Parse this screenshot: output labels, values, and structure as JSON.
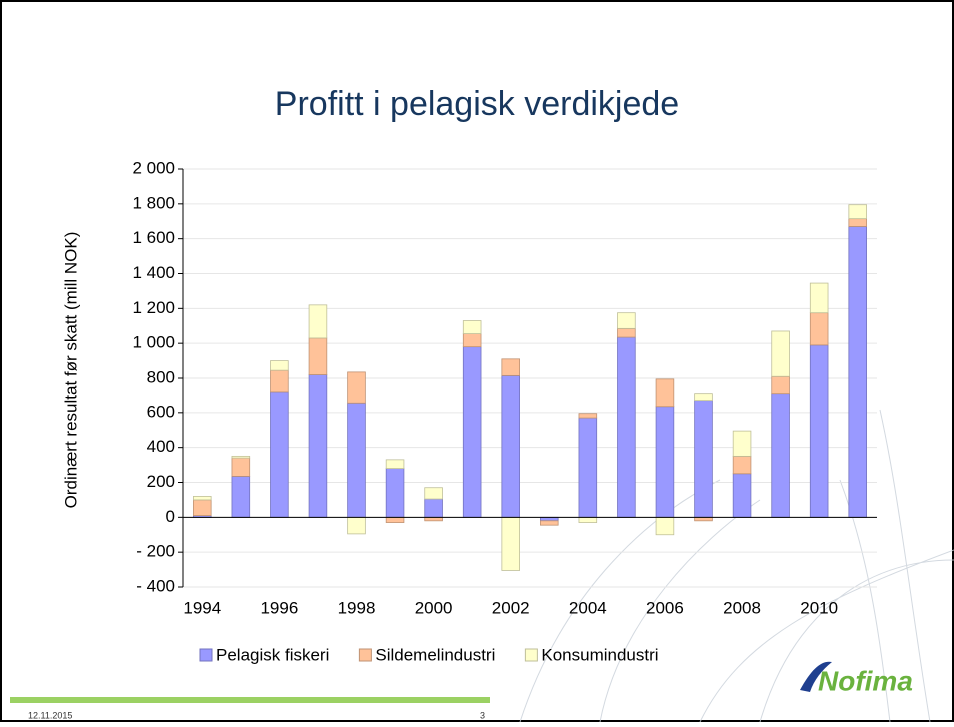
{
  "chart_data": {
    "type": "bar",
    "stacked": true,
    "title": "Profitt i pelagisk verdikjede",
    "y_label": "Ordinært resultat før skatt (mill NOK)",
    "categories": [
      "1994",
      null,
      "1996",
      null,
      "1998",
      null,
      "2000",
      null,
      "2002",
      null,
      "2004",
      null,
      "2006",
      null,
      "2008",
      null,
      "2010",
      null
    ],
    "series": [
      {
        "name": "Pelagisk fiskeri",
        "color": "#9999ff",
        "values": [
          10,
          235,
          720,
          820,
          655,
          280,
          105,
          980,
          815,
          -20,
          570,
          1035,
          635,
          670,
          250,
          710,
          990,
          1670
        ]
      },
      {
        "name": "Sildemelindustri",
        "color": "#ffc299",
        "values": [
          90,
          105,
          125,
          210,
          180,
          -30,
          -20,
          75,
          95,
          -25,
          25,
          50,
          160,
          -20,
          100,
          100,
          185,
          45
        ]
      },
      {
        "name": "Konsumindustri",
        "color": "#ffffcc",
        "values": [
          20,
          10,
          55,
          190,
          -95,
          50,
          65,
          75,
          -305,
          0,
          -30,
          90,
          -100,
          40,
          145,
          260,
          170,
          80
        ]
      }
    ],
    "ylim": [
      -400,
      2000
    ],
    "yticks": [
      {
        "value": -400,
        "label": "- 400"
      },
      {
        "value": -200,
        "label": "- 200"
      },
      0,
      200,
      400,
      600,
      800,
      {
        "value": 1000,
        "label": "1 000"
      },
      {
        "value": 1200,
        "label": "1 200"
      },
      {
        "value": 1400,
        "label": "1 400"
      },
      {
        "value": 1600,
        "label": "1 600"
      },
      {
        "value": 1800,
        "label": "1 800"
      },
      {
        "value": 2000,
        "label": "2 000"
      }
    ],
    "grid": true,
    "legend": "bottom"
  },
  "footer": {
    "date": "12.11.2015",
    "page": "3",
    "logo": "Nofima"
  }
}
